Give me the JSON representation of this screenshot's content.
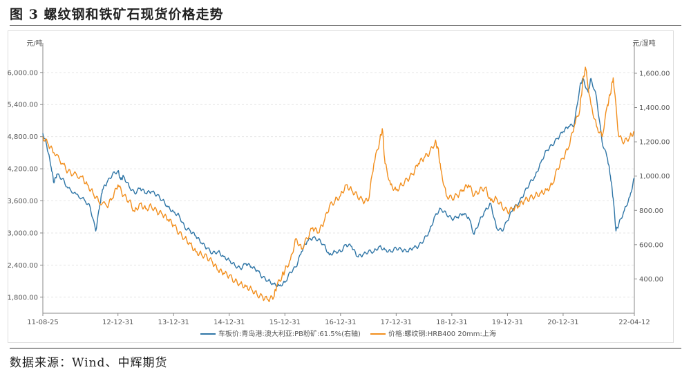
{
  "figure": {
    "title": "图 3 螺纹钢和铁矿石现货价格走势",
    "source": "数据来源：Wind、中辉期货"
  },
  "chart_data": {
    "type": "line",
    "left_axis": {
      "unit": "元/吨",
      "ylim": [
        1500,
        6450
      ],
      "ticks": [
        1800,
        2400,
        3000,
        3600,
        4200,
        4800,
        5400,
        6000
      ],
      "tick_labels": [
        "1,800.00",
        "2,400.00",
        "3,000.00",
        "3,600.00",
        "4,200.00",
        "4,800.00",
        "5,400.00",
        "6,000.00"
      ]
    },
    "right_axis": {
      "unit": "元/湿吨",
      "ylim": [
        200,
        1745
      ],
      "ticks": [
        400,
        600,
        800,
        1000,
        1200,
        1400,
        1600
      ],
      "tick_labels": [
        "400.00",
        "600.00",
        "800.00",
        "1,000.00",
        "1,200.00",
        "1,400.00",
        "1,600.00"
      ]
    },
    "x_axis": {
      "range": [
        2011.65,
        2022.28
      ],
      "ticks": [
        2011.65,
        2013.0,
        2014.0,
        2015.0,
        2016.0,
        2017.0,
        2018.0,
        2019.0,
        2020.0,
        2021.0,
        2022.28
      ],
      "tick_labels": [
        "11-08-25",
        "12-12-31",
        "13-12-31",
        "14-12-31",
        "15-12-31",
        "16-12-31",
        "17-12-31",
        "18-12-31",
        "19-12-31",
        "20-12-31",
        "22-04-12"
      ]
    },
    "series": [
      {
        "name": "车板价:青岛港:澳大利亚:PB粉矿:61.5%(右轴)",
        "axis": "right",
        "color": "#2e75a6",
        "x": [
          2011.65,
          2011.72,
          2011.8,
          2011.85,
          2011.9,
          2012.0,
          2012.1,
          2012.25,
          2012.4,
          2012.5,
          2012.6,
          2012.68,
          2012.72,
          2012.8,
          2012.9,
          2013.0,
          2013.05,
          2013.1,
          2013.2,
          2013.3,
          2013.4,
          2013.5,
          2013.6,
          2013.7,
          2013.8,
          2013.9,
          2014.0,
          2014.1,
          2014.2,
          2014.3,
          2014.4,
          2014.5,
          2014.6,
          2014.7,
          2014.8,
          2014.9,
          2015.0,
          2015.1,
          2015.2,
          2015.3,
          2015.4,
          2015.5,
          2015.6,
          2015.7,
          2015.8,
          2015.9,
          2016.0,
          2016.1,
          2016.2,
          2016.3,
          2016.4,
          2016.5,
          2016.6,
          2016.7,
          2016.8,
          2016.9,
          2017.0,
          2017.1,
          2017.2,
          2017.3,
          2017.4,
          2017.5,
          2017.6,
          2017.7,
          2017.8,
          2017.9,
          2018.0,
          2018.1,
          2018.2,
          2018.3,
          2018.4,
          2018.5,
          2018.6,
          2018.7,
          2018.8,
          2018.9,
          2019.0,
          2019.1,
          2019.2,
          2019.3,
          2019.4,
          2019.5,
          2019.6,
          2019.7,
          2019.8,
          2019.9,
          2020.0,
          2020.1,
          2020.2,
          2020.3,
          2020.4,
          2020.5,
          2020.6,
          2020.7,
          2020.8,
          2020.9,
          2021.0,
          2021.1,
          2021.2,
          2021.3,
          2021.35,
          2021.45,
          2021.5,
          2021.6,
          2021.7,
          2021.8,
          2021.85,
          2021.9,
          2021.95,
          2022.0,
          2022.1,
          2022.2,
          2022.28
        ],
        "values": [
          1250,
          1180,
          1050,
          960,
          1010,
          985,
          930,
          895,
          860,
          820,
          680,
          840,
          920,
          960,
          1010,
          1030,
          980,
          1000,
          940,
          900,
          930,
          900,
          910,
          890,
          860,
          820,
          790,
          770,
          700,
          680,
          650,
          610,
          580,
          550,
          560,
          530,
          510,
          480,
          460,
          490,
          470,
          450,
          410,
          390,
          370,
          360,
          380,
          440,
          470,
          560,
          620,
          640,
          630,
          600,
          540,
          560,
          560,
          600,
          590,
          530,
          540,
          560,
          560,
          590,
          570,
          560,
          580,
          570,
          560,
          580,
          590,
          630,
          680,
          770,
          810,
          780,
          750,
          760,
          780,
          760,
          660,
          740,
          800,
          840,
          700,
          680,
          740,
          810,
          840,
          900,
          960,
          1000,
          1080,
          1150,
          1180,
          1220,
          1260,
          1290,
          1300,
          1520,
          1570,
          1490,
          1570,
          1460,
          1200,
          1100,
          1000,
          870,
          680,
          720,
          800,
          880,
          990
        ]
      },
      {
        "name": "价格:螺纹钢:HRB400 20mm:上海",
        "axis": "left",
        "color": "#f28e1c",
        "x": [
          2011.65,
          2011.75,
          2011.85,
          2012.0,
          2012.1,
          2012.2,
          2012.35,
          2012.45,
          2012.55,
          2012.65,
          2012.8,
          2012.9,
          2013.0,
          2013.1,
          2013.2,
          2013.3,
          2013.4,
          2013.5,
          2013.6,
          2013.7,
          2013.8,
          2013.9,
          2014.0,
          2014.1,
          2014.2,
          2014.3,
          2014.4,
          2014.5,
          2014.6,
          2014.7,
          2014.8,
          2014.9,
          2015.0,
          2015.1,
          2015.2,
          2015.3,
          2015.4,
          2015.5,
          2015.6,
          2015.7,
          2015.8,
          2015.85,
          2015.95,
          2016.0,
          2016.1,
          2016.2,
          2016.3,
          2016.4,
          2016.5,
          2016.6,
          2016.7,
          2016.8,
          2016.9,
          2017.0,
          2017.1,
          2017.2,
          2017.3,
          2017.4,
          2017.5,
          2017.6,
          2017.7,
          2017.75,
          2017.8,
          2017.9,
          2018.0,
          2018.1,
          2018.2,
          2018.3,
          2018.4,
          2018.5,
          2018.6,
          2018.7,
          2018.75,
          2018.8,
          2018.9,
          2019.0,
          2019.1,
          2019.2,
          2019.3,
          2019.4,
          2019.5,
          2019.6,
          2019.7,
          2019.8,
          2019.9,
          2020.0,
          2020.1,
          2020.2,
          2020.3,
          2020.4,
          2020.5,
          2020.6,
          2020.7,
          2020.8,
          2020.9,
          2021.0,
          2021.1,
          2021.2,
          2021.3,
          2021.35,
          2021.4,
          2021.5,
          2021.6,
          2021.7,
          2021.8,
          2021.85,
          2021.9,
          2022.0,
          2022.1,
          2022.2,
          2022.28
        ],
        "values": [
          4800,
          4650,
          4500,
          4300,
          4150,
          4100,
          4050,
          3900,
          3750,
          3600,
          3500,
          3650,
          3900,
          3700,
          3600,
          3400,
          3550,
          3450,
          3500,
          3400,
          3350,
          3250,
          3150,
          3000,
          2900,
          2800,
          2650,
          2600,
          2550,
          2450,
          2300,
          2250,
          2200,
          2100,
          2050,
          2000,
          1950,
          1850,
          1800,
          1750,
          1800,
          2000,
          2200,
          2300,
          2500,
          2900,
          2700,
          2900,
          3100,
          3000,
          3200,
          3500,
          3600,
          3700,
          3900,
          3800,
          3700,
          3600,
          3600,
          4300,
          4700,
          4950,
          4300,
          3900,
          3800,
          3900,
          4000,
          4100,
          4300,
          4400,
          4500,
          4700,
          4600,
          4200,
          3700,
          3650,
          3700,
          3800,
          3900,
          3700,
          3800,
          3850,
          3600,
          3650,
          3500,
          3400,
          3450,
          3500,
          3600,
          3650,
          3700,
          3750,
          3800,
          3900,
          4200,
          4400,
          4600,
          5000,
          5300,
          5800,
          6100,
          5400,
          5000,
          4800,
          5400,
          5600,
          5900,
          4800,
          4700,
          4800,
          4900
        ]
      }
    ]
  }
}
